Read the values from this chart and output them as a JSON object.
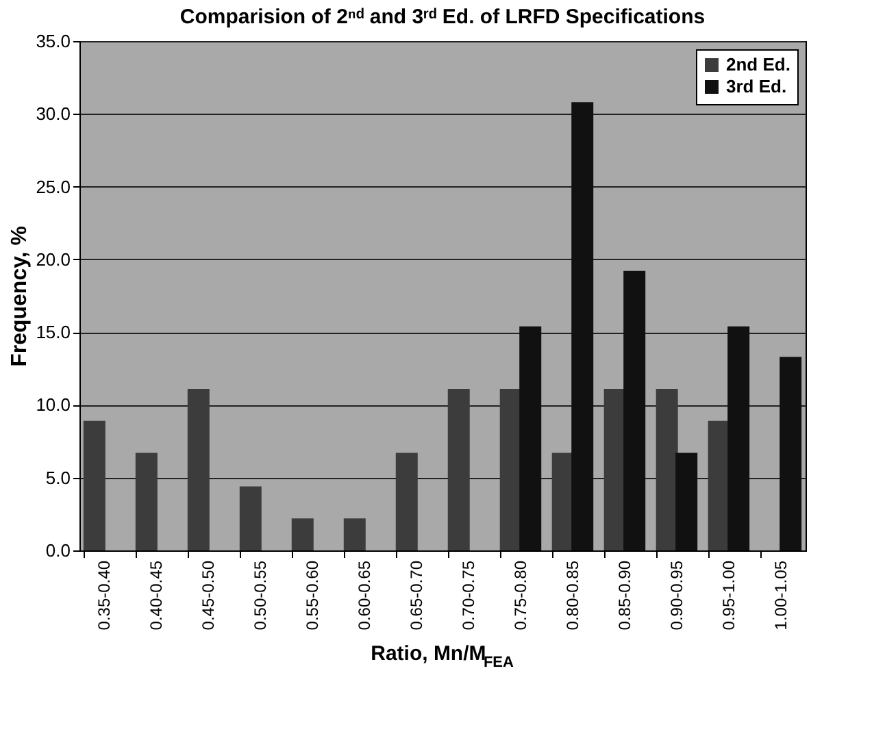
{
  "chart_data": {
    "type": "bar",
    "title": "Comparision of 2ⁿᵈ and 3ʳᵈ Ed. of LRFD Specifications",
    "xlabel": "Ratio, Mn/M$_{FEA}$",
    "ylabel": "Frequency, %",
    "categories": [
      "0.35-0.40",
      "0.40-0.45",
      "0.45-0.50",
      "0.50-0.55",
      "0.55-0.60",
      "0.60-0.65",
      "0.65-0.70",
      "0.70-0.75",
      "0.75-0.80",
      "0.80-0.85",
      "0.85-0.90",
      "0.90-0.95",
      "0.95-1.00",
      "1.00-1.05"
    ],
    "series": [
      {
        "name": "2nd Ed.",
        "color": "#3c3c3c",
        "values": [
          8.9,
          6.7,
          11.1,
          4.4,
          2.2,
          2.2,
          6.7,
          11.1,
          11.1,
          6.7,
          11.1,
          11.1,
          8.9,
          0
        ]
      },
      {
        "name": "3rd Ed.",
        "color": "#111111",
        "values": [
          0,
          0,
          0,
          0,
          0,
          0,
          0,
          0,
          15.4,
          30.8,
          19.2,
          6.7,
          15.4,
          13.3
        ]
      }
    ],
    "ylim": [
      0,
      35
    ],
    "yticks": [
      {
        "value": 0,
        "label": "0.0"
      },
      {
        "value": 5,
        "label": "5.0"
      },
      {
        "value": 10,
        "label": "10.0"
      },
      {
        "value": 15,
        "label": "15.0"
      },
      {
        "value": 20,
        "label": "20.0"
      },
      {
        "value": 25,
        "label": "25.0"
      },
      {
        "value": 30,
        "label": "30.0"
      },
      {
        "value": 35,
        "label": "35.0"
      }
    ],
    "grid": "y",
    "legend": "top right"
  }
}
